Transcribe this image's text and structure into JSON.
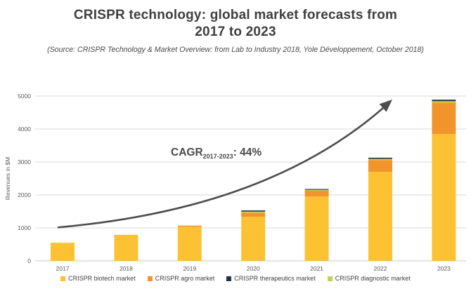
{
  "page": {
    "title": "CRISPR technology: global market forecasts from 2017 to 2023",
    "source_line": "(Source: CRISPR Technology & Market Overview: from Lab to Industry 2018, Yole Développement, October 2018)"
  },
  "chart_data": {
    "type": "bar",
    "stacked": true,
    "title": "CRISPR technology: global market forecasts from 2017 to 2023",
    "categories": [
      "2017",
      "2018",
      "2019",
      "2020",
      "2021",
      "2022",
      "2023"
    ],
    "series": [
      {
        "name": "CRISPR biotech market",
        "color": "#FCC233",
        "values": [
          550,
          790,
          1040,
          1340,
          1950,
          2700,
          3850
        ]
      },
      {
        "name": "CRISPR agro market",
        "color": "#F2942C",
        "values": [
          0,
          0,
          30,
          120,
          180,
          360,
          950
        ]
      },
      {
        "name": "CRISPR diagnostic market",
        "color": "#C2D24F",
        "values": [
          0,
          0,
          0,
          35,
          25,
          35,
          45
        ]
      },
      {
        "name": "CRISPR therapeutics market",
        "color": "#22354A",
        "values": [
          0,
          0,
          0,
          35,
          25,
          35,
          45
        ]
      }
    ],
    "totals": [
      550,
      790,
      1070,
      1530,
      2180,
      3130,
      4890
    ],
    "legend_order": [
      "CRISPR biotech market",
      "CRISPR agro market",
      "CRISPR therapeutics market",
      "CRISPR diagnostic market"
    ],
    "xlabel": "",
    "ylabel": "Revenues in $M",
    "ylim": [
      0,
      5000
    ],
    "ytick_step": 1000,
    "yticks": [
      0,
      1000,
      2000,
      3000,
      4000,
      5000
    ],
    "grid": true,
    "legend_position": "bottom",
    "annotation": {
      "prefix": "CAGR",
      "subscript": "2017-2023",
      "suffix": ": 44%"
    },
    "trend_arrow": {
      "from_category": "2017",
      "from_value": 1080,
      "to_category": "2022",
      "to_value": 4850
    }
  },
  "theme": {
    "grid_color": "#d9d9d9",
    "axis_line_color": "#c9c9c9",
    "tick_text_color": "#595959",
    "arrow_color": "#4d4d4d",
    "annotation_color": "#4a4a4a"
  }
}
